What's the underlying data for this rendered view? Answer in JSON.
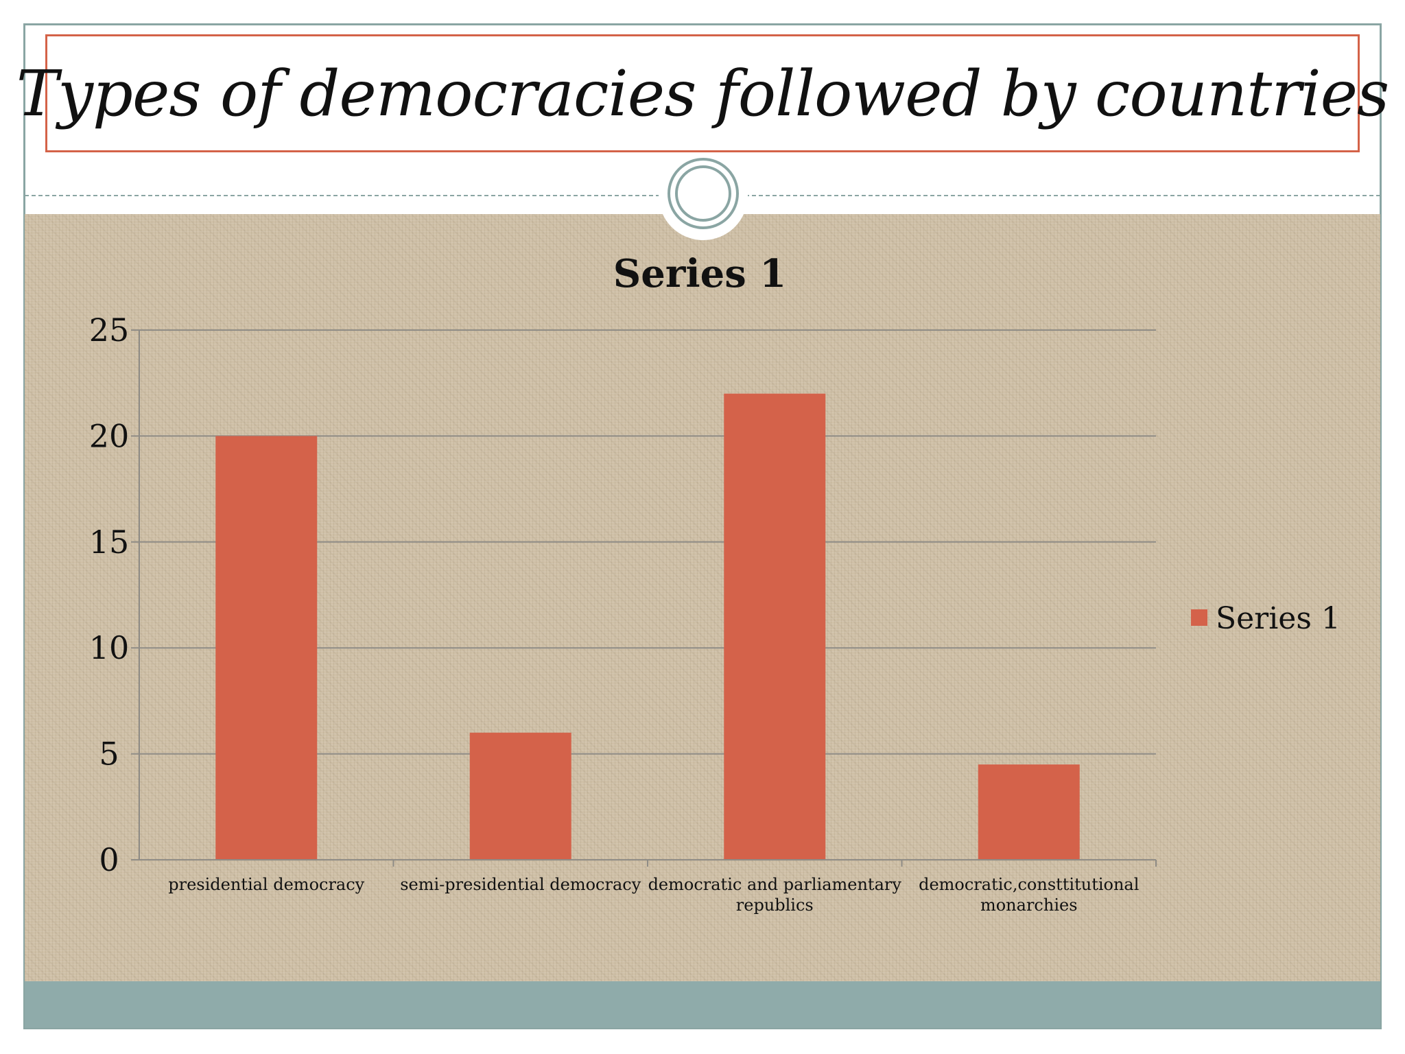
{
  "slide": {
    "title": "Types of democracies followed by countries"
  },
  "colors": {
    "accent": "#d4624a",
    "frame": "#8aa5a3",
    "footer": "#8fabaa",
    "texture": "#cfc0a7"
  },
  "chart_data": {
    "type": "bar",
    "title": "Series 1",
    "categories": [
      [
        "presidential democracy"
      ],
      [
        "semi-presidential democracy"
      ],
      [
        "democratic and parliamentary",
        "republics"
      ],
      [
        "democratic,consttitutional",
        "monarchies"
      ]
    ],
    "series": [
      {
        "name": "Series 1",
        "values": [
          20,
          6,
          22,
          4.5
        ],
        "color": "#d4624a"
      }
    ],
    "ylim": [
      0,
      25
    ],
    "yticks": [
      0,
      5,
      10,
      15,
      20,
      25
    ],
    "grid": true,
    "legend": "right"
  }
}
